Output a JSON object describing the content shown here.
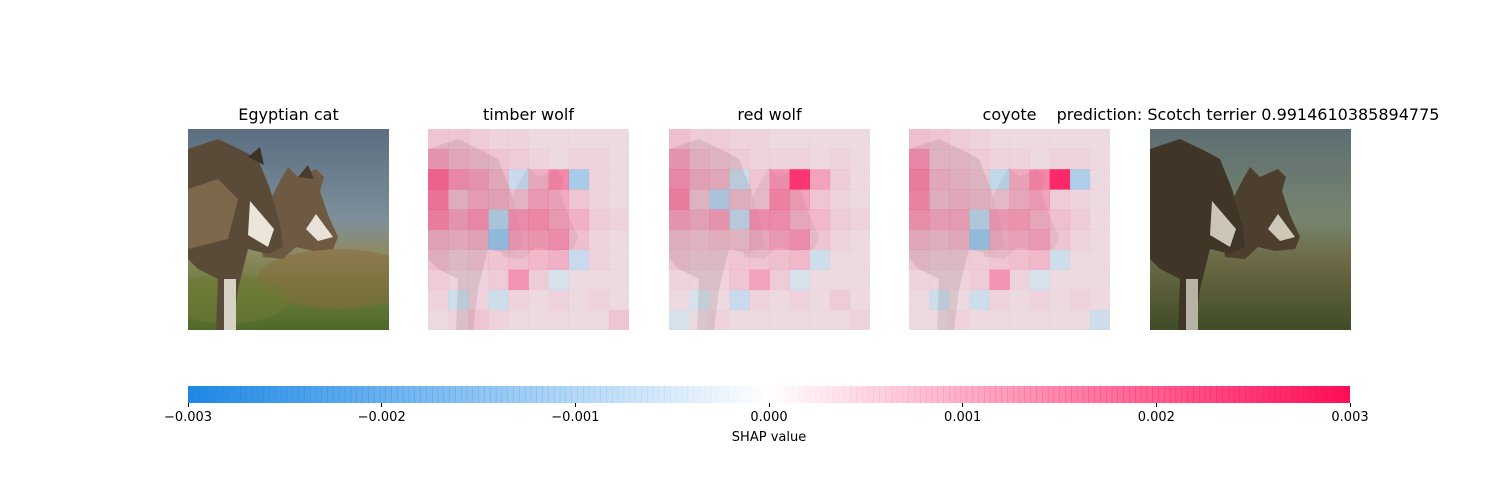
{
  "chart_data": {
    "type": "heatmap",
    "panels": [
      {
        "title": "Egyptian cat",
        "kind": "original"
      },
      {
        "title": "timber wolf",
        "kind": "shap"
      },
      {
        "title": "red wolf",
        "kind": "shap"
      },
      {
        "title": "coyote",
        "kind": "shap"
      },
      {
        "title": "prediction: Scotch terrier 0.9914610385894775",
        "kind": "prediction"
      }
    ],
    "grid": [
      10,
      10
    ],
    "values": [
      [
        [
          0.0003,
          0.0003,
          0.0002,
          0.0001,
          0.0001,
          0,
          0,
          0,
          0,
          0
        ],
        [
          0.0008,
          0.0005,
          0.0004,
          0.0003,
          0.0002,
          0.0001,
          0,
          0.0001,
          0.0001,
          0
        ],
        [
          0.0016,
          0.001,
          0.0008,
          0.0005,
          -0.0003,
          0.0006,
          0.0012,
          -0.0008,
          0.0001,
          0
        ],
        [
          0.0014,
          0.0004,
          0.0007,
          0.0006,
          0.0004,
          0.0008,
          0.0007,
          0.0003,
          0.0001,
          0
        ],
        [
          0.0012,
          0.0008,
          0.001,
          -0.0005,
          0.001,
          0.0011,
          0.0008,
          0.0006,
          0.0002,
          0.0001
        ],
        [
          0.0006,
          0.0005,
          0.0006,
          -0.001,
          0.0008,
          0.0009,
          0.001,
          0.0004,
          0.0001,
          0
        ],
        [
          0.0004,
          0.0002,
          0.0003,
          0.0003,
          0.0004,
          0.0005,
          0.0006,
          -0.0003,
          0.0001,
          0
        ],
        [
          0.0002,
          0.0001,
          0.0001,
          0.0002,
          0.001,
          0.0002,
          -0.0001,
          0,
          0,
          0
        ],
        [
          0.0001,
          -0.0002,
          0.0001,
          -0.0002,
          0.0001,
          0,
          0.0001,
          0,
          0.0001,
          0
        ],
        [
          0,
          0.0001,
          0.0003,
          0.0001,
          0,
          0,
          0,
          0,
          0,
          0.0003
        ]
      ],
      [
        [
          0.0004,
          0.0002,
          0.0002,
          0.0001,
          0.0001,
          0,
          0,
          0,
          0,
          0
        ],
        [
          0.0008,
          0.0004,
          0.0003,
          0.0002,
          0.0001,
          0.0001,
          0.0001,
          0,
          0.0001,
          0
        ],
        [
          0.001,
          0.0006,
          0.0005,
          -0.0002,
          0.0003,
          0.001,
          0.0024,
          0.0008,
          0.0002,
          0
        ],
        [
          0.0012,
          0.0003,
          -0.0005,
          0.0004,
          0.0003,
          0.0012,
          0.0008,
          0.0003,
          0.0001,
          0
        ],
        [
          0.0008,
          0.0006,
          0.0008,
          -0.0003,
          0.001,
          0.001,
          0.0006,
          0.0005,
          0.0002,
          0.0001
        ],
        [
          0.0004,
          0.0003,
          0.0004,
          0.0003,
          0.0006,
          0.0008,
          0.001,
          0.0003,
          0.0001,
          0
        ],
        [
          0.0003,
          0.0002,
          0.0002,
          0.0003,
          0.0003,
          0.0004,
          0.0005,
          -0.0002,
          0,
          0
        ],
        [
          0.0001,
          0.0001,
          0.0001,
          0.0003,
          0.0008,
          0.0002,
          -0.0001,
          0,
          0,
          0
        ],
        [
          0,
          -0.0001,
          0,
          -0.0003,
          0.0001,
          0,
          0.0001,
          0,
          0.0002,
          0
        ],
        [
          -0.0001,
          0,
          0.0001,
          0,
          0,
          0,
          0,
          0,
          0,
          0.0001
        ]
      ],
      [
        [
          0.0004,
          0.0003,
          0.0002,
          0.0001,
          0,
          0,
          0,
          0,
          0,
          0
        ],
        [
          0.001,
          0.0003,
          0.0003,
          0.0002,
          0.0001,
          0.0001,
          0,
          0.0001,
          0.0001,
          0
        ],
        [
          0.0012,
          0.0005,
          0.0004,
          0.0003,
          -0.0004,
          0.0007,
          0.0012,
          0.0026,
          -0.0007,
          0
        ],
        [
          0.0011,
          0.0004,
          0.0005,
          0.0004,
          0.0003,
          0.0006,
          0.0008,
          0.0002,
          0.0001,
          0
        ],
        [
          0.0009,
          0.0007,
          0.0007,
          -0.0004,
          0.0008,
          0.0009,
          0.0006,
          0.0004,
          0.0002,
          0
        ],
        [
          0.0005,
          0.0004,
          0.0005,
          -0.0009,
          0.0006,
          0.0007,
          0.0008,
          0.0003,
          0.0001,
          0
        ],
        [
          0.0003,
          0.0002,
          0.0002,
          0.0002,
          0.0003,
          0.0004,
          0.0005,
          -0.0002,
          0,
          0
        ],
        [
          0.0001,
          0.0001,
          0.0001,
          0.0002,
          0.001,
          0.0001,
          -0.0001,
          0,
          0,
          0
        ],
        [
          0,
          -0.0002,
          0,
          -0.0002,
          0.0001,
          0,
          0.0001,
          0,
          0.0001,
          0
        ],
        [
          0,
          0,
          0.0001,
          0,
          0,
          0,
          0,
          0,
          0,
          -0.0002
        ]
      ]
    ],
    "colorbar": {
      "label": "SHAP value",
      "min": -0.003,
      "max": 0.003,
      "ticks": [
        -0.003,
        -0.002,
        -0.001,
        0.0,
        0.001,
        0.002,
        0.003
      ],
      "tick_labels": [
        "−0.003",
        "−0.002",
        "−0.001",
        "0.000",
        "0.001",
        "0.002",
        "0.003"
      ],
      "neg_color": "#1E88E5",
      "pos_color": "#FF0D57"
    }
  }
}
